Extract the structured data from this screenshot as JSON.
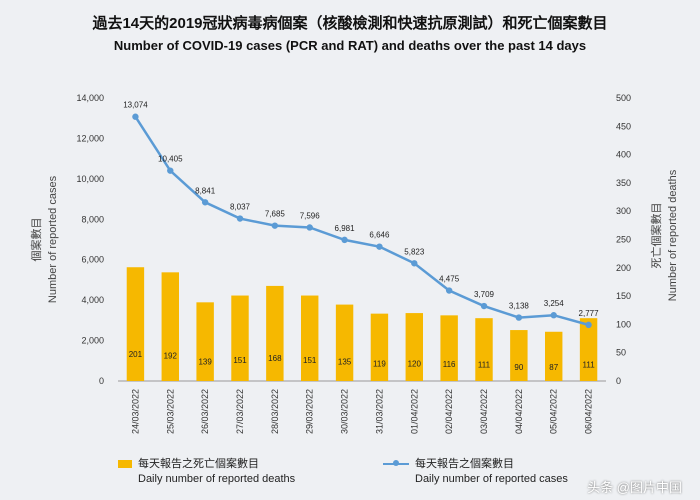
{
  "chart_data": {
    "type": "bar+line",
    "title": "過去14天的2019冠狀病毒病個案（核酸檢測和快速抗原測試）和死亡個案數目",
    "subtitle": "Number of COVID-19 cases (PCR and RAT) and deaths over the past 14 days",
    "categories": [
      "24/03/2022",
      "25/03/2022",
      "26/03/2022",
      "27/03/2022",
      "28/03/2022",
      "29/03/2022",
      "30/03/2022",
      "31/03/2022",
      "01/04/2022",
      "02/04/2022",
      "03/04/2022",
      "04/04/2022",
      "05/04/2022",
      "06/04/2022"
    ],
    "series": [
      {
        "name": "每天報告之個案數目 Daily number of reported cases",
        "type": "line",
        "axis": "left",
        "color": "#5b9bd5",
        "values": [
          13074,
          10405,
          8841,
          8037,
          7685,
          7596,
          6981,
          6646,
          5823,
          4475,
          3709,
          3138,
          3254,
          2777
        ],
        "labels": [
          "13,074",
          "10,405",
          "8,841",
          "8,037",
          "7,685",
          "7,596",
          "6,981",
          "6,646",
          "5,823",
          "4,475",
          "3,709",
          "3,138",
          "3,254",
          "2,777"
        ]
      },
      {
        "name": "每天報告之死亡個案數目 Daily number of reported deaths",
        "type": "bar",
        "axis": "right",
        "color": "#f6b800",
        "values": [
          201,
          192,
          139,
          151,
          168,
          151,
          135,
          119,
          120,
          116,
          111,
          90,
          87,
          111
        ]
      }
    ],
    "left_axis": {
      "label_zh": "個案數目",
      "label_en": "Number of reported cases",
      "range": [
        0,
        14000
      ],
      "ticks": [
        0,
        2000,
        4000,
        6000,
        8000,
        10000,
        12000,
        14000
      ],
      "tick_labels": [
        "0",
        "2,000",
        "4,000",
        "6,000",
        "8,000",
        "10,000",
        "12,000",
        "14,000"
      ]
    },
    "right_axis": {
      "label_zh": "死亡個案數目",
      "label_en": "Number of reported deaths",
      "range": [
        0,
        500
      ],
      "ticks": [
        0,
        50,
        100,
        150,
        200,
        250,
        300,
        350,
        400,
        450,
        500
      ]
    },
    "legend": {
      "bar_zh": "每天報告之死亡個案數目",
      "bar_en": "Daily number of reported deaths",
      "line_zh": "每天報告之個案數目",
      "line_en": "Daily number of reported cases"
    },
    "grid": false
  },
  "watermark": "头条 @图片中国"
}
